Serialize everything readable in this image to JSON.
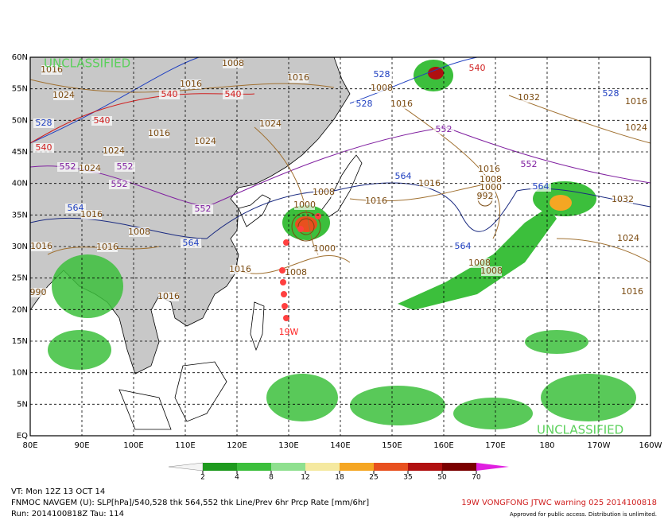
{
  "map": {
    "watermark": [
      "UNCLASSIFIED",
      "UNCLASSIFIED"
    ],
    "lat_labels": [
      "60N",
      "55N",
      "50N",
      "45N",
      "40N",
      "35N",
      "30N",
      "25N",
      "20N",
      "15N",
      "10N",
      "5N",
      "EQ"
    ],
    "lon_labels": [
      "80E",
      "90E",
      "100E",
      "110E",
      "120E",
      "130E",
      "140E",
      "150E",
      "160E",
      "170E",
      "180",
      "170W",
      "160W"
    ],
    "storm_label": "19W",
    "contour_labels": [
      {
        "text": "1016",
        "color": "#7a4a10"
      },
      {
        "text": "1008",
        "color": "#7a4a10"
      },
      {
        "text": "1024",
        "color": "#7a4a10"
      },
      {
        "text": "1016",
        "color": "#7a4a10"
      },
      {
        "text": "540",
        "color": "#d02020"
      },
      {
        "text": "540",
        "color": "#d02020"
      },
      {
        "text": "1016",
        "color": "#7a4a10"
      },
      {
        "text": "528",
        "color": "#2040c0"
      },
      {
        "text": "540",
        "color": "#d02020"
      },
      {
        "text": "1016",
        "color": "#7a4a10"
      },
      {
        "text": "1024",
        "color": "#7a4a10"
      },
      {
        "text": "1024",
        "color": "#7a4a10"
      },
      {
        "text": "540",
        "color": "#d02020"
      },
      {
        "text": "1024",
        "color": "#7a4a10"
      },
      {
        "text": "552",
        "color": "#8020a0"
      },
      {
        "text": "1024",
        "color": "#7a4a10"
      },
      {
        "text": "552",
        "color": "#8020a0"
      },
      {
        "text": "552",
        "color": "#8020a0"
      },
      {
        "text": "564",
        "color": "#2040c0"
      },
      {
        "text": "1016",
        "color": "#7a4a10"
      },
      {
        "text": "552",
        "color": "#8020a0"
      },
      {
        "text": "1008",
        "color": "#7a4a10"
      },
      {
        "text": "564",
        "color": "#2040c0"
      },
      {
        "text": "1016",
        "color": "#7a4a10"
      },
      {
        "text": "1016",
        "color": "#7a4a10"
      },
      {
        "text": "1016",
        "color": "#7a4a10"
      },
      {
        "text": "1016",
        "color": "#7a4a10"
      },
      {
        "text": "1000",
        "color": "#7a4a10"
      },
      {
        "text": "1008",
        "color": "#7a4a10"
      },
      {
        "text": "1000",
        "color": "#7a4a10"
      },
      {
        "text": "1008",
        "color": "#7a4a10"
      },
      {
        "text": "1016",
        "color": "#7a4a10"
      },
      {
        "text": "1016",
        "color": "#7a4a10"
      },
      {
        "text": "564",
        "color": "#2040c0"
      },
      {
        "text": "1016",
        "color": "#7a4a10"
      },
      {
        "text": "1008",
        "color": "#7a4a10"
      },
      {
        "text": "1000",
        "color": "#7a4a10"
      },
      {
        "text": "992",
        "color": "#7a4a10"
      },
      {
        "text": "552",
        "color": "#8020a0"
      },
      {
        "text": "564",
        "color": "#2040c0"
      },
      {
        "text": "1032",
        "color": "#7a4a10"
      },
      {
        "text": "1024",
        "color": "#7a4a10"
      },
      {
        "text": "564",
        "color": "#2040c0"
      },
      {
        "text": "1008",
        "color": "#7a4a10"
      },
      {
        "text": "1008",
        "color": "#7a4a10"
      },
      {
        "text": "1016",
        "color": "#7a4a10"
      },
      {
        "text": "1032",
        "color": "#7a4a10"
      },
      {
        "text": "552",
        "color": "#8020a0"
      },
      {
        "text": "528",
        "color": "#2040c0"
      },
      {
        "text": "1008",
        "color": "#7a4a10"
      },
      {
        "text": "1016",
        "color": "#7a4a10"
      },
      {
        "text": "528",
        "color": "#2040c0"
      },
      {
        "text": "540",
        "color": "#d02020"
      },
      {
        "text": "528",
        "color": "#2040c0"
      },
      {
        "text": "1016",
        "color": "#7a4a10"
      },
      {
        "text": "1024",
        "color": "#7a4a10"
      },
      {
        "text": "990",
        "color": "#7a4a10"
      }
    ]
  },
  "colorbar": {
    "ticks": [
      2,
      4,
      8,
      12,
      18,
      25,
      35,
      50,
      70
    ]
  },
  "footer": {
    "valid_time": "VT: Mon 12Z 13 OCT 14",
    "description": "FNMOC NAVGEM (U): SLP[hPa]/540,528 thk 564,552 thk Line/Prev 6hr Prcp Rate [mm/6hr]",
    "run": "Run: 2014100818Z Tau: 114",
    "warning": "19W VONGFONG JTWC warning 025 2014100818",
    "approval": "Approved for public access. Distribution is unlimited."
  }
}
